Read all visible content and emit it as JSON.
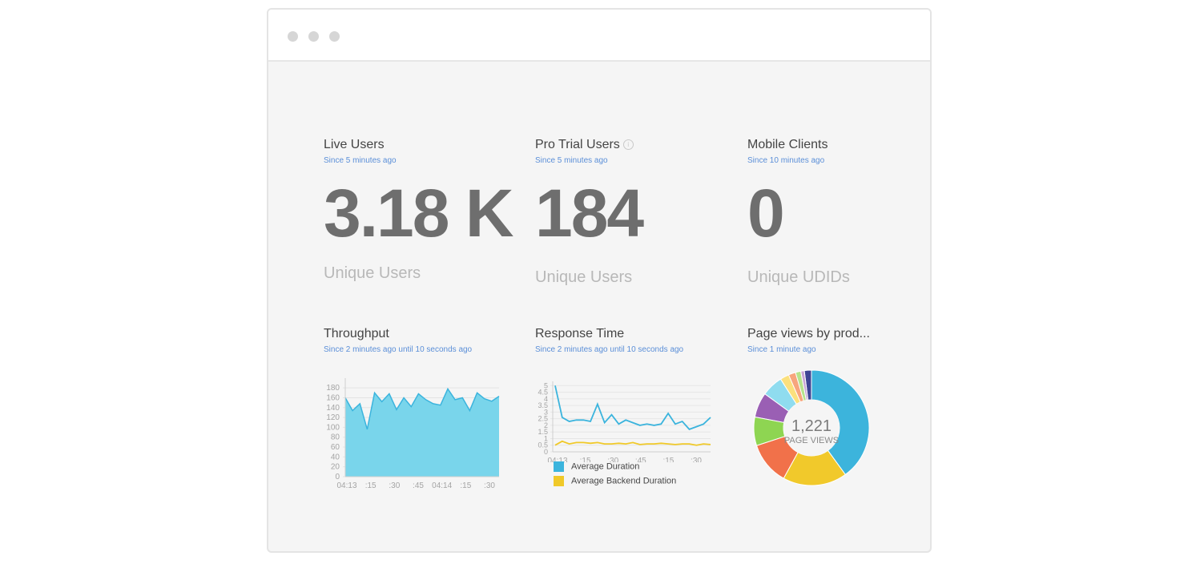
{
  "window": {
    "controls": [
      "close",
      "minimize",
      "maximize"
    ]
  },
  "widgets": {
    "live_users": {
      "title": "Live Users",
      "subtitle": "Since 5 minutes ago",
      "value": "3.18 K",
      "unit": "Unique Users"
    },
    "pro_trial_users": {
      "title": "Pro Trial Users",
      "info_icon": "info-icon",
      "subtitle": "Since 5 minutes ago",
      "value": "184",
      "unit": "Unique Users"
    },
    "mobile_clients": {
      "title": "Mobile Clients",
      "subtitle": "Since 10 minutes ago",
      "value": "0",
      "unit": "Unique UDIDs"
    },
    "throughput": {
      "title": "Throughput",
      "subtitle": "Since 2 minutes ago until 10 seconds ago"
    },
    "response_time": {
      "title": "Response Time",
      "subtitle": "Since 2 minutes ago until 10 seconds ago"
    },
    "page_views": {
      "title": "Page views by prod...",
      "subtitle": "Since 1 minute ago",
      "center_value": "1,221",
      "center_label": "PAGE VIEWS"
    }
  },
  "colors": {
    "accent_blue": "#3bb4dd",
    "area_fill": "#79d5eb",
    "yellow": "#f0c929",
    "subtitle_blue": "#5b8fd8"
  },
  "chart_data": [
    {
      "type": "area",
      "x_tick_labels": [
        "04:13",
        ":15",
        ":30",
        ":45",
        "04:14",
        ":15",
        ":30"
      ],
      "y_tick_labels": [
        "0",
        "20",
        "40",
        "60",
        "80",
        "100",
        "120",
        "140",
        "160",
        "180"
      ],
      "ylim": [
        0,
        190
      ],
      "grid": true,
      "values": [
        160,
        134,
        148,
        96,
        170,
        152,
        168,
        136,
        160,
        142,
        168,
        156,
        148,
        145,
        178,
        156,
        160,
        134,
        170,
        158,
        153,
        163
      ]
    },
    {
      "type": "line",
      "x_tick_labels": [
        "04:13",
        ":15",
        ":30",
        ":45",
        ":15",
        ":30"
      ],
      "y_tick_labels": [
        "0",
        "0.5",
        "1",
        "1.5",
        "2",
        "2.5",
        "3",
        "3.5",
        "4",
        "4.5",
        "5"
      ],
      "ylim": [
        0,
        5.2
      ],
      "grid": true,
      "legend_position": "bottom",
      "series": [
        {
          "name": "Average Duration",
          "color": "#3bb4dd",
          "values": [
            5.0,
            2.6,
            2.3,
            2.4,
            2.4,
            2.3,
            3.6,
            2.2,
            2.8,
            2.1,
            2.4,
            2.2,
            2.0,
            2.1,
            2.0,
            2.1,
            2.9,
            2.1,
            2.3,
            1.7,
            1.9,
            2.1,
            2.6
          ]
        },
        {
          "name": "Average Backend Duration",
          "color": "#f0c929",
          "values": [
            0.5,
            0.8,
            0.6,
            0.7,
            0.7,
            0.65,
            0.7,
            0.6,
            0.6,
            0.65,
            0.6,
            0.7,
            0.55,
            0.6,
            0.6,
            0.65,
            0.6,
            0.55,
            0.6,
            0.6,
            0.5,
            0.6,
            0.55
          ]
        }
      ]
    },
    {
      "type": "pie",
      "donut": true,
      "total": 1221,
      "slices": [
        {
          "value": 40,
          "color": "#3cb4dc"
        },
        {
          "value": 18,
          "color": "#f1c92b"
        },
        {
          "value": 12,
          "color": "#f1714a"
        },
        {
          "value": 8,
          "color": "#8ed552"
        },
        {
          "value": 7,
          "color": "#9a5fb4"
        },
        {
          "value": 6,
          "color": "#8fdcef"
        },
        {
          "value": 2.5,
          "color": "#fbe07d"
        },
        {
          "value": 2,
          "color": "#f7a57d"
        },
        {
          "value": 1.5,
          "color": "#b6e38c"
        },
        {
          "value": 1,
          "color": "#c9a6d6"
        },
        {
          "value": 2,
          "color": "#3e4594"
        }
      ]
    }
  ]
}
